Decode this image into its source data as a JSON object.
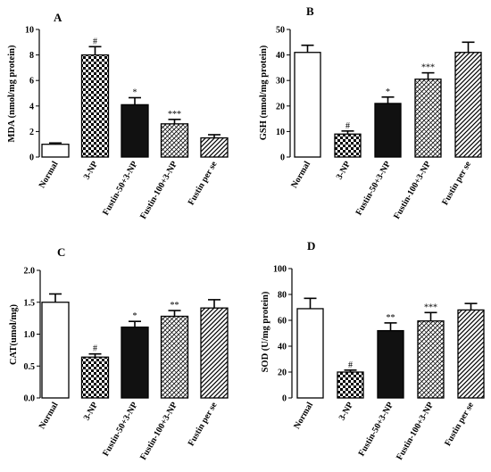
{
  "chart_data": [
    {
      "type": "bar",
      "panel": "A",
      "ylabel": "MDA (nmol/mg protein)",
      "ylim": [
        0,
        10
      ],
      "yticks": [
        "0",
        "2",
        "4",
        "6",
        "8",
        "10"
      ],
      "categories": [
        "Normal",
        "3-NP",
        "Fustin-50+3-NP",
        "Fustin-100+3-NP",
        "Fustin per se"
      ],
      "values": [
        1.0,
        8.0,
        4.1,
        2.6,
        1.5
      ],
      "errors": [
        0.1,
        0.65,
        0.55,
        0.35,
        0.25
      ],
      "significance": [
        "",
        "#",
        "*",
        "***",
        ""
      ]
    },
    {
      "type": "bar",
      "panel": "B",
      "ylabel": "GSH (nmol/mg protein)",
      "ylim": [
        0,
        50
      ],
      "yticks": [
        "0",
        "10",
        "20",
        "30",
        "40",
        "50"
      ],
      "categories": [
        "Normal",
        "3-NP",
        "Fustin-50+3-NP",
        "Fustin-100+3-NP",
        "Fustin per se"
      ],
      "values": [
        41,
        9,
        21,
        30.5,
        41
      ],
      "errors": [
        2.8,
        1.2,
        2.5,
        2.5,
        4.0
      ],
      "significance": [
        "",
        "#",
        "*",
        "***",
        ""
      ]
    },
    {
      "type": "bar",
      "panel": "C",
      "ylabel": "CAT(umol/mg)",
      "ylim": [
        0,
        2.0
      ],
      "yticks": [
        "0.0",
        "0.5",
        "1.0",
        "1.5",
        "2.0"
      ],
      "categories": [
        "Normal",
        "3-NP",
        "Fustin-50+3-NP",
        "Fustin-100+3-NP",
        "Fustin per se"
      ],
      "values": [
        1.5,
        0.64,
        1.11,
        1.28,
        1.41
      ],
      "errors": [
        0.13,
        0.05,
        0.09,
        0.09,
        0.13
      ],
      "significance": [
        "",
        "#",
        "*",
        "**",
        ""
      ]
    },
    {
      "type": "bar",
      "panel": "D",
      "ylabel": "SOD (U/mg protein)",
      "ylim": [
        0,
        100
      ],
      "yticks": [
        "0",
        "20",
        "40",
        "60",
        "80",
        "100"
      ],
      "categories": [
        "Normal",
        "3-NP",
        "Fustin-50+3-NP",
        "Fustin-100+3-NP",
        "Fustin per se"
      ],
      "values": [
        69,
        20,
        52,
        59.5,
        68
      ],
      "errors": [
        8.0,
        1.5,
        6.0,
        6.5,
        5.0
      ],
      "significance": [
        "",
        "#",
        "**",
        "***",
        ""
      ]
    }
  ],
  "colors": {
    "ink": "#000000",
    "bar_normal": "#ffffff",
    "bar_fustin50": "#111111"
  },
  "bar_styles": [
    "white",
    "checker",
    "solid-black",
    "crosshatch",
    "diagonal"
  ]
}
